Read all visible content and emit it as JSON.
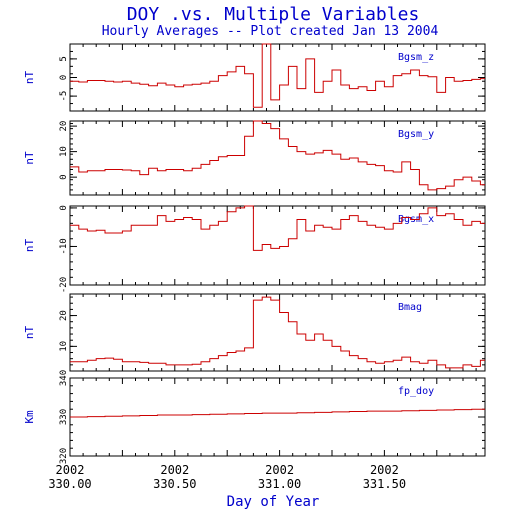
{
  "title": "DOY .vs. Multiple Variables",
  "subtitle": "Hourly Averages -- Plot created Jan 13 2004",
  "colors": {
    "title": "#0000cc",
    "trace": "#cc0000",
    "axis": "#000000"
  },
  "chart_data": {
    "type": "line",
    "x_axis": {
      "label": "Day of Year",
      "range": [
        330.0,
        331.98
      ],
      "ticks": [
        {
          "value": 330.0,
          "year": "2002",
          "label": "330.00"
        },
        {
          "value": 330.5,
          "year": "2002",
          "label": "330.50"
        },
        {
          "value": 331.0,
          "year": "2002",
          "label": "331.00"
        },
        {
          "value": 331.5,
          "year": "2002",
          "label": "331.50"
        }
      ]
    },
    "panels": [
      {
        "id": "bgsm-z",
        "name": "Bgsm_z",
        "unit": "nT",
        "ylim": [
          -9,
          9
        ],
        "yticks": [
          -5,
          0,
          5
        ],
        "x": [
          330.0,
          330.042,
          330.083,
          330.125,
          330.167,
          330.208,
          330.25,
          330.292,
          330.333,
          330.375,
          330.417,
          330.458,
          330.5,
          330.542,
          330.583,
          330.625,
          330.667,
          330.708,
          330.75,
          330.792,
          330.833,
          330.875,
          330.917,
          330.958,
          331.0,
          331.042,
          331.083,
          331.125,
          331.167,
          331.208,
          331.25,
          331.292,
          331.333,
          331.375,
          331.417,
          331.458,
          331.5,
          331.542,
          331.583,
          331.625,
          331.667,
          331.708,
          331.75,
          331.792,
          331.833,
          331.875,
          331.917,
          331.958
        ],
        "values": [
          -1.0,
          -1.2,
          -0.8,
          -0.8,
          -1.0,
          -1.2,
          -1.0,
          -1.5,
          -1.8,
          -2.2,
          -1.5,
          -2.0,
          -2.5,
          -2.0,
          -1.8,
          -1.5,
          -1.0,
          0.5,
          1.5,
          3.0,
          1.0,
          -8.0,
          9.0,
          -6.0,
          -2.0,
          3.0,
          -3.0,
          5.0,
          -4.0,
          -1.0,
          2.0,
          -2.0,
          -3.0,
          -2.5,
          -3.5,
          -1.0,
          -2.5,
          0.5,
          1.0,
          2.0,
          0.5,
          0.2,
          -4.0,
          0.0,
          -1.0,
          -0.8,
          -0.5,
          -0.3
        ]
      },
      {
        "id": "bgsm-y",
        "name": "Bgsm_y",
        "unit": "nT",
        "ylim": [
          -7,
          22
        ],
        "yticks": [
          0,
          10,
          20
        ],
        "x": [
          330.0,
          330.042,
          330.083,
          330.125,
          330.167,
          330.208,
          330.25,
          330.292,
          330.333,
          330.375,
          330.417,
          330.458,
          330.5,
          330.542,
          330.583,
          330.625,
          330.667,
          330.708,
          330.75,
          330.792,
          330.833,
          330.875,
          330.917,
          330.958,
          331.0,
          331.042,
          331.083,
          331.125,
          331.167,
          331.208,
          331.25,
          331.292,
          331.333,
          331.375,
          331.417,
          331.458,
          331.5,
          331.542,
          331.583,
          331.625,
          331.667,
          331.708,
          331.75,
          331.792,
          331.833,
          331.875,
          331.917,
          331.958
        ],
        "values": [
          4.0,
          2.0,
          2.5,
          2.5,
          3.0,
          3.0,
          2.8,
          2.5,
          1.0,
          3.5,
          2.5,
          3.0,
          3.0,
          2.5,
          3.5,
          5.0,
          6.5,
          8.0,
          8.5,
          8.5,
          16.0,
          22.0,
          21.0,
          19.0,
          15.0,
          12.0,
          10.0,
          9.0,
          9.5,
          10.5,
          9.0,
          7.0,
          7.5,
          6.0,
          5.0,
          4.5,
          2.5,
          2.0,
          6.0,
          3.0,
          -3.0,
          -5.0,
          -4.5,
          -3.5,
          -1.0,
          0.0,
          -1.5,
          -3.0
        ]
      },
      {
        "id": "bgsm-x",
        "name": "Bgsm_x",
        "unit": "nT",
        "ylim": [
          -20,
          0.5
        ],
        "yticks": [
          -20,
          -10,
          0
        ],
        "x": [
          330.0,
          330.042,
          330.083,
          330.125,
          330.167,
          330.208,
          330.25,
          330.292,
          330.333,
          330.375,
          330.417,
          330.458,
          330.5,
          330.542,
          330.583,
          330.625,
          330.667,
          330.708,
          330.75,
          330.792,
          330.833,
          330.875,
          330.917,
          330.958,
          331.0,
          331.042,
          331.083,
          331.125,
          331.167,
          331.208,
          331.25,
          331.292,
          331.333,
          331.375,
          331.417,
          331.458,
          331.5,
          331.542,
          331.583,
          331.625,
          331.667,
          331.708,
          331.75,
          331.792,
          331.833,
          331.875,
          331.917,
          331.958
        ],
        "values": [
          -4.5,
          -5.5,
          -6.0,
          -5.8,
          -6.5,
          -6.5,
          -6.0,
          -4.5,
          -4.5,
          -4.5,
          -2.0,
          -3.5,
          -3.0,
          -2.5,
          -3.0,
          -5.5,
          -4.5,
          -3.5,
          -1.0,
          0.0,
          0.5,
          -11.0,
          -9.5,
          -10.5,
          -10.0,
          -8.0,
          -3.0,
          -6.0,
          -4.5,
          -5.0,
          -5.5,
          -3.0,
          -2.0,
          -3.5,
          -4.5,
          -5.0,
          -5.5,
          -4.0,
          -2.5,
          -3.0,
          -1.5,
          0.0,
          -2.0,
          -1.5,
          -3.0,
          -4.5,
          -3.5,
          -4.0
        ]
      },
      {
        "id": "bmag",
        "name": "Bmag",
        "unit": "nT",
        "ylim": [
          2,
          27
        ],
        "yticks": [
          10,
          20
        ],
        "x": [
          330.0,
          330.042,
          330.083,
          330.125,
          330.167,
          330.208,
          330.25,
          330.292,
          330.333,
          330.375,
          330.417,
          330.458,
          330.5,
          330.542,
          330.583,
          330.625,
          330.667,
          330.708,
          330.75,
          330.792,
          330.833,
          330.875,
          330.917,
          330.958,
          331.0,
          331.042,
          331.083,
          331.125,
          331.167,
          331.208,
          331.25,
          331.292,
          331.333,
          331.375,
          331.417,
          331.458,
          331.5,
          331.542,
          331.583,
          331.625,
          331.667,
          331.708,
          331.75,
          331.792,
          331.833,
          331.875,
          331.917,
          331.958
        ],
        "values": [
          5.0,
          5.0,
          5.5,
          6.0,
          6.2,
          5.8,
          5.0,
          5.0,
          4.8,
          4.5,
          4.5,
          4.0,
          4.0,
          4.0,
          4.2,
          5.0,
          6.0,
          7.0,
          8.0,
          8.5,
          9.5,
          25.0,
          26.0,
          25.0,
          21.0,
          18.0,
          14.0,
          12.0,
          14.0,
          12.0,
          10.0,
          8.5,
          7.0,
          6.0,
          5.0,
          4.5,
          5.0,
          5.5,
          6.5,
          5.0,
          4.5,
          5.5,
          4.0,
          3.0,
          3.0,
          4.0,
          3.5,
          5.5
        ]
      },
      {
        "id": "fp-doy",
        "name": "fp_doy",
        "unit": "Km",
        "ylim": [
          320,
          340
        ],
        "yticks": [
          320,
          330,
          340
        ],
        "x": [
          330.0,
          330.083,
          330.167,
          330.25,
          330.333,
          330.417,
          330.5,
          330.583,
          330.667,
          330.75,
          330.833,
          330.917,
          331.0,
          331.083,
          331.167,
          331.25,
          331.333,
          331.417,
          331.5,
          331.583,
          331.667,
          331.75,
          331.833,
          331.917
        ],
        "values": [
          330.0,
          330.1,
          330.2,
          330.3,
          330.4,
          330.5,
          330.5,
          330.6,
          330.7,
          330.8,
          330.9,
          331.0,
          331.0,
          331.1,
          331.2,
          331.3,
          331.4,
          331.5,
          331.5,
          331.6,
          331.7,
          331.8,
          331.9,
          332.0
        ]
      }
    ]
  }
}
